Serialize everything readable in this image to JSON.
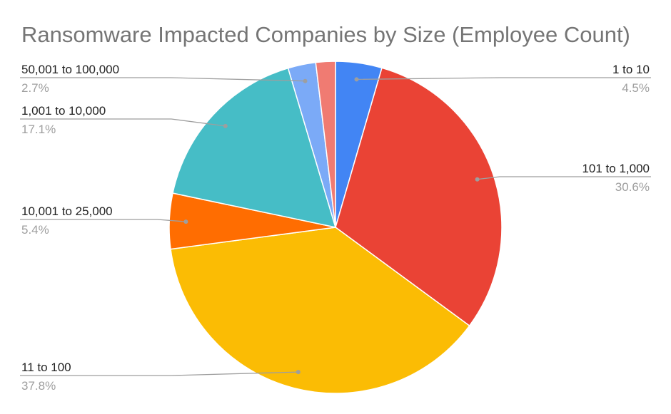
{
  "chart_data": {
    "type": "pie",
    "title": "Ransomware Impacted Companies by Size (Employee Count)",
    "start_angle_deg": 0,
    "direction": "clockwise",
    "legend": "labels-with-leader-lines",
    "slices": [
      {
        "label": "1 to 10",
        "value": 4.5,
        "value_label": "4.5%",
        "color": "#4285f4"
      },
      {
        "label": "101 to 1,000",
        "value": 30.6,
        "value_label": "30.6%",
        "color": "#ea4335"
      },
      {
        "label": "11 to 100",
        "value": 37.8,
        "value_label": "37.8%",
        "color": "#fbbc04"
      },
      {
        "label": "10,001 to 25,000",
        "value": 5.4,
        "value_label": "5.4%",
        "color": "#ff6d01"
      },
      {
        "label": "1,001 to 10,000",
        "value": 17.1,
        "value_label": "17.1%",
        "color": "#46bdc6"
      },
      {
        "label": "50,001 to 100,000",
        "value": 2.7,
        "value_label": "2.7%",
        "color": "#7baaf7"
      },
      {
        "label": "",
        "value": 1.9,
        "value_label": "",
        "color": "#f07b72"
      }
    ]
  }
}
